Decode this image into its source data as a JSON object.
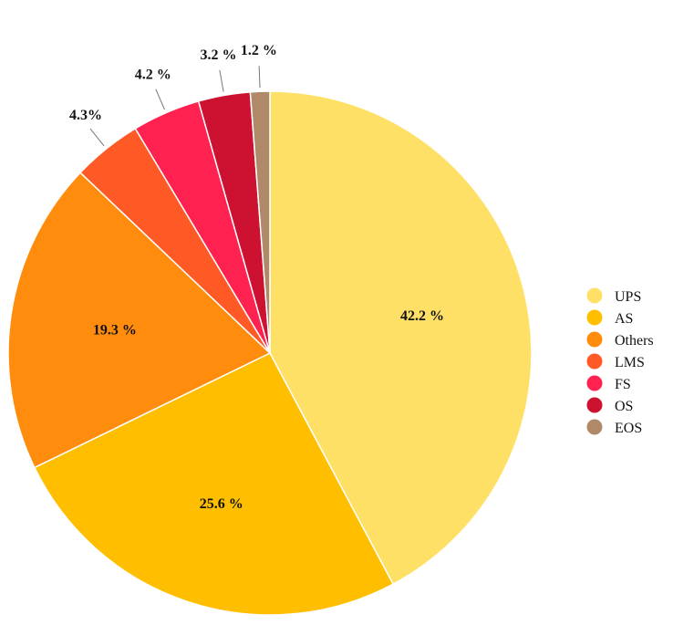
{
  "chart_data": {
    "type": "pie",
    "title": "",
    "legend_position": "right",
    "slices": [
      {
        "name": "UPS",
        "value": 42.2,
        "label": "42.2 %",
        "color": "#FFE066"
      },
      {
        "name": "AS",
        "value": 25.6,
        "label": "25.6 %",
        "color": "#FFBF00"
      },
      {
        "name": "Others",
        "value": 19.3,
        "label": "19.3 %",
        "color": "#FF8C0D"
      },
      {
        "name": "LMS",
        "value": 4.3,
        "label": "4.3%",
        "color": "#FF5A26"
      },
      {
        "name": "FS",
        "value": 4.2,
        "label": "4.2 %",
        "color": "#FF2150"
      },
      {
        "name": "OS",
        "value": 3.2,
        "label": "3.2 %",
        "color": "#CC1230"
      },
      {
        "name": "EOS",
        "value": 1.2,
        "label": "1.2 %",
        "color": "#B08A68"
      }
    ]
  }
}
